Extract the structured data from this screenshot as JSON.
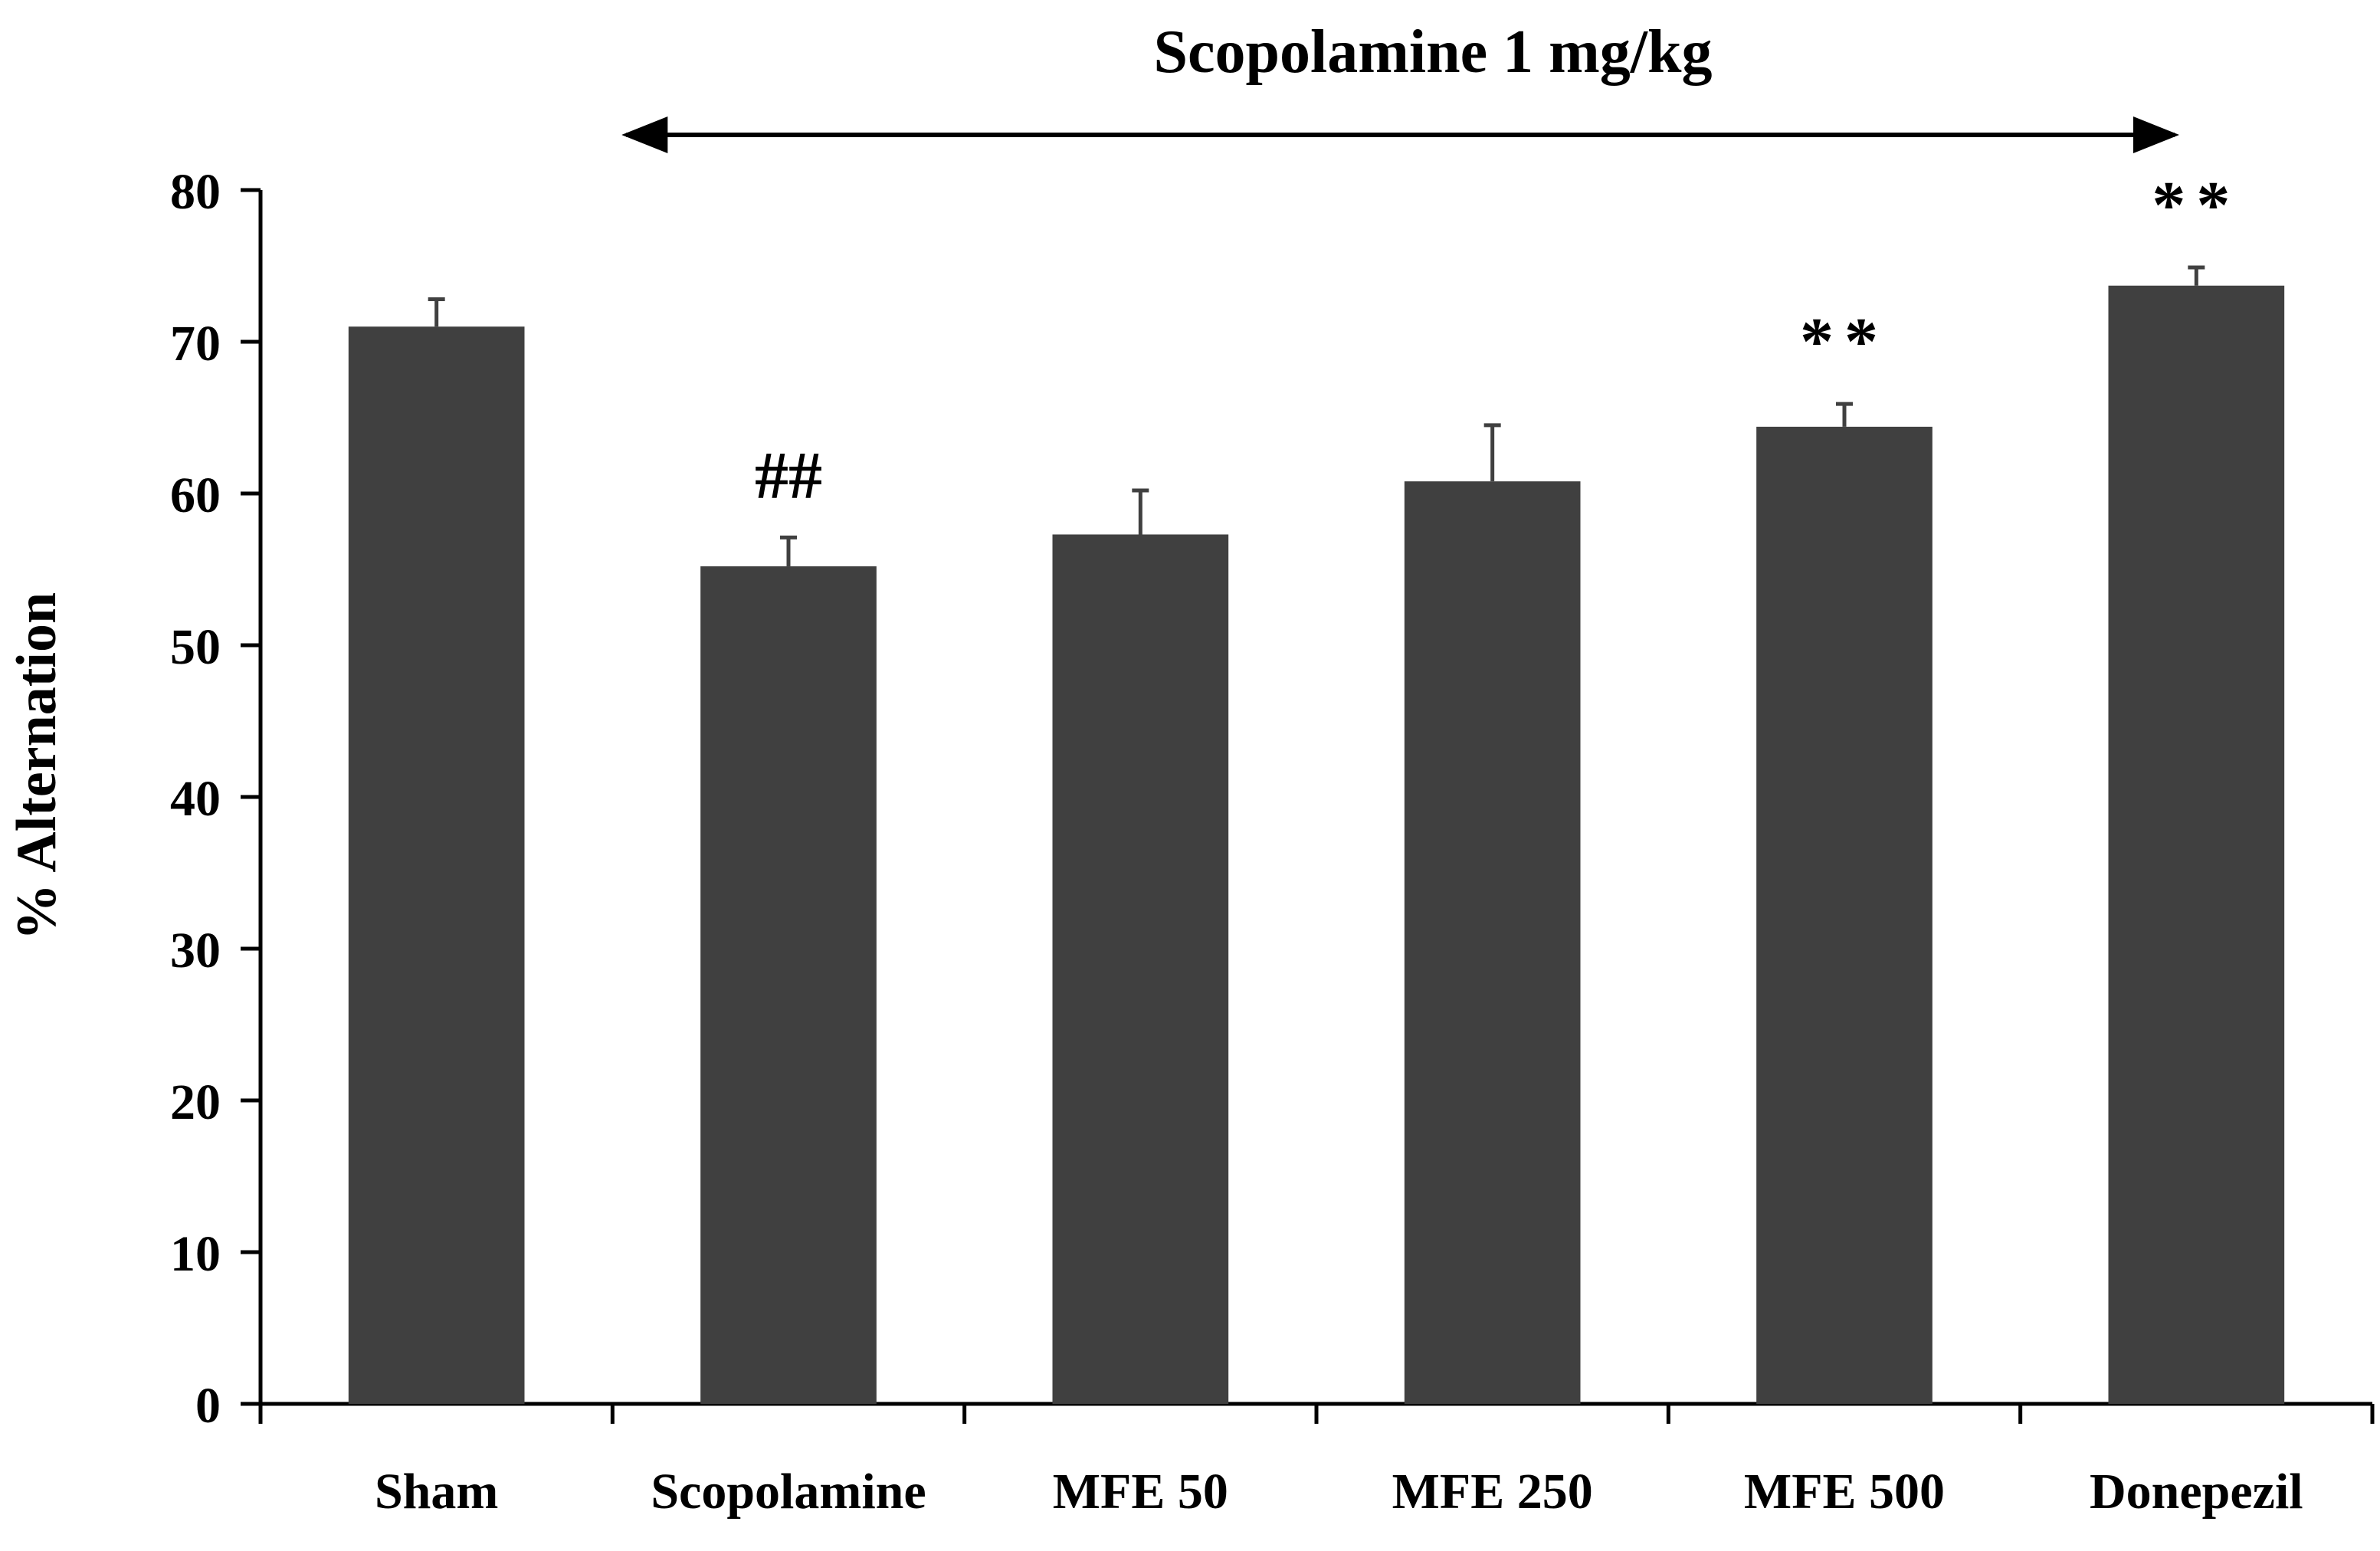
{
  "chart_data": {
    "type": "bar",
    "title": "Scopolamine 1 mg/kg",
    "xlabel": "",
    "ylabel": "% Alternation",
    "categories": [
      "Sham",
      "Scopolamine",
      "MFE 50",
      "MFE 250",
      "MFE 500",
      "Donepezil"
    ],
    "values": [
      71.0,
      55.2,
      57.3,
      60.8,
      64.4,
      73.7
    ],
    "errors": [
      1.8,
      1.9,
      2.9,
      3.7,
      1.5,
      1.2
    ],
    "annotations": [
      "",
      "##",
      "",
      "",
      "**",
      "**"
    ],
    "ylim": [
      0,
      80
    ],
    "yticks": [
      0,
      10,
      20,
      30,
      40,
      50,
      60,
      70,
      80
    ],
    "bracket": {
      "label": "Scopolamine 1 mg/kg",
      "from_category": "Scopolamine",
      "to_category": "Donepezil",
      "style": "double-arrow"
    },
    "grid": false,
    "legend": "none"
  },
  "colors": {
    "bar": "#404040",
    "error_bar": "#404040",
    "axis": "#000000",
    "text": "#000000",
    "background": "#ffffff"
  }
}
